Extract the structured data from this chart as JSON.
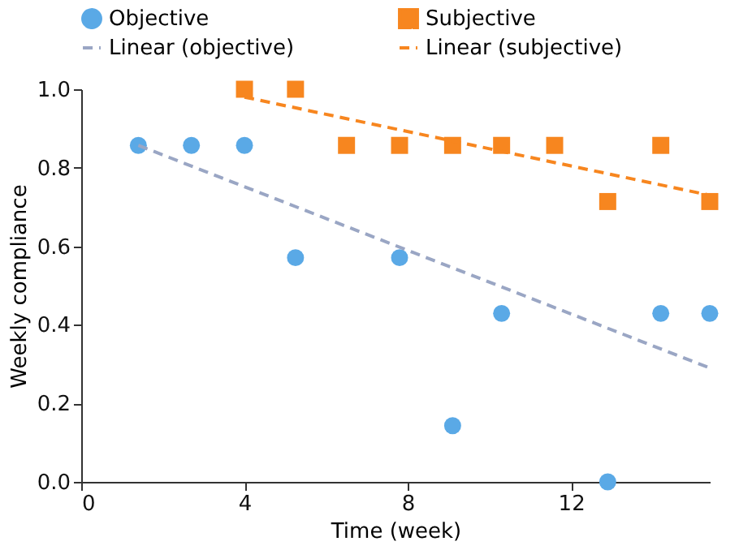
{
  "chart_data": {
    "type": "scatter",
    "xlabel": "Time (week)",
    "ylabel": "Weekly compliance",
    "xlim": [
      0,
      15.4
    ],
    "xticks": [
      0,
      4,
      8,
      12
    ],
    "ylim": [
      0,
      1.0
    ],
    "yticks": [
      {
        "value": 0,
        "label": "0.0"
      },
      0.2,
      0.4,
      0.6,
      0.8,
      {
        "value": 1,
        "label": "1.0"
      }
    ],
    "grid": false,
    "legend": "top",
    "series": [
      {
        "name": "Objective",
        "marker": "circle",
        "color": "#5aa9e6",
        "x": [
          1.4,
          2.7,
          4.0,
          5.25,
          7.8,
          9.1,
          10.3,
          12.9,
          14.2,
          15.4
        ],
        "values": [
          0.857,
          0.857,
          0.857,
          0.571,
          0.571,
          0.143,
          0.429,
          0.0,
          0.429,
          0.429
        ]
      },
      {
        "name": "Subjective",
        "marker": "square",
        "color": "#f7861f",
        "x": [
          4.0,
          5.25,
          6.5,
          7.8,
          9.1,
          10.3,
          11.6,
          12.9,
          14.2,
          15.4
        ],
        "values": [
          1.0,
          1.0,
          0.857,
          0.857,
          0.857,
          0.857,
          0.857,
          0.714,
          0.857,
          0.714
        ]
      },
      {
        "name": "Linear (objective)",
        "type": "line",
        "line_style": "dashed",
        "color": "#9aa6c4",
        "x": [
          1.4,
          15.4
        ],
        "values": [
          0.857,
          0.29
        ]
      },
      {
        "name": "Linear (subjective)",
        "type": "line",
        "line_style": "dashed",
        "color": "#f7861f",
        "x": [
          4.0,
          15.4
        ],
        "values": [
          0.98,
          0.73
        ]
      }
    ]
  }
}
